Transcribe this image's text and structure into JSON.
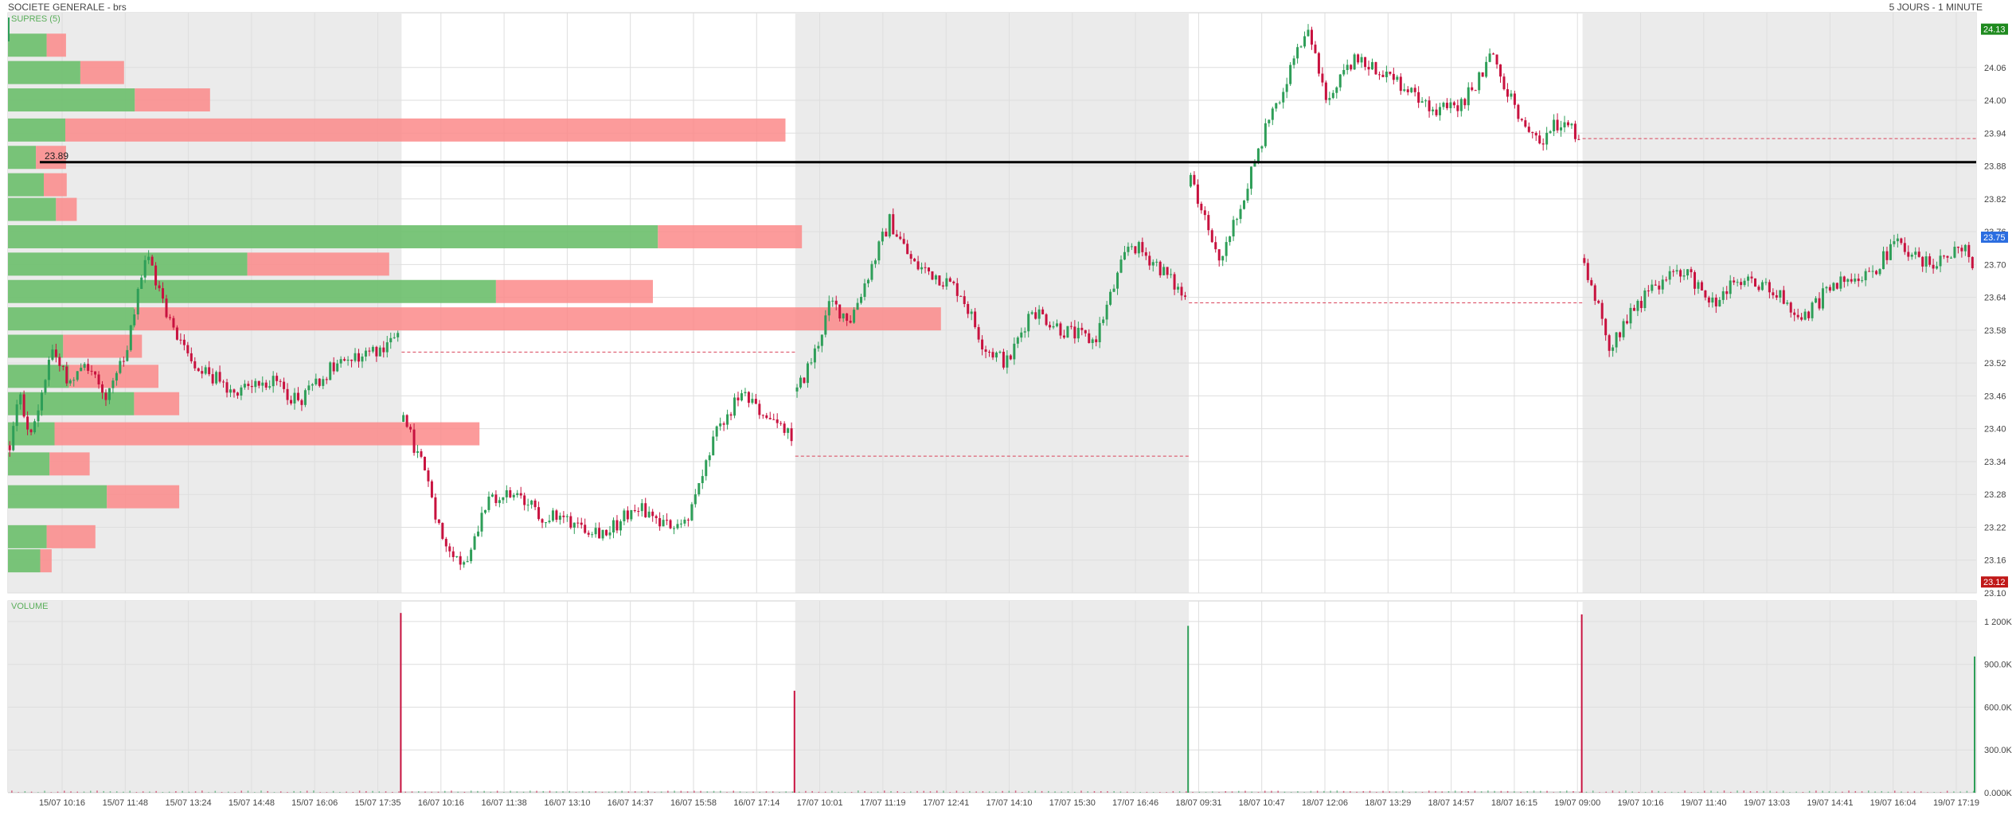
{
  "header": {
    "title": "SOCIETE GENERALE - brs",
    "period": "5 JOURS - 1 MINUTE"
  },
  "price_panel": {
    "label": "SUPRES (5)"
  },
  "volume_panel": {
    "label": "VOLUME"
  },
  "colors": {
    "up": "#2e9e58",
    "down": "#c8123f",
    "profile_buy": "#6cbf6c",
    "profile_sell": "#fb8a8a",
    "shade": "#ebebeb",
    "grid": "#dedede",
    "level_line": "#000000",
    "ref_line": "#d9435a",
    "badge_high": "#1f8a1f",
    "badge_last": "#2b6de0",
    "badge_low": "#c01818"
  },
  "chart_data": [
    {
      "type": "candlestick",
      "title": "SOCIETE GENERALE - brs",
      "subtitle": "5 JOURS - 1 MINUTE",
      "indicator": "SUPRES (5)",
      "ylim": [
        23.1,
        24.16
      ],
      "y_ticks": [
        "23.10",
        "23.16",
        "23.22",
        "23.28",
        "23.34",
        "23.40",
        "23.46",
        "23.52",
        "23.58",
        "23.64",
        "23.70",
        "23.76",
        "23.82",
        "23.88",
        "23.94",
        "24.00",
        "24.06"
      ],
      "x_tick_labels": [
        "15/07 10:16",
        "15/07 11:48",
        "15/07 13:24",
        "15/07 14:48",
        "15/07 16:06",
        "15/07 17:35",
        "16/07 10:16",
        "16/07 11:38",
        "16/07 13:10",
        "16/07 14:37",
        "16/07 15:58",
        "16/07 17:14",
        "17/07 10:01",
        "17/07 11:19",
        "17/07 12:41",
        "17/07 14:10",
        "17/07 15:30",
        "17/07 16:46",
        "18/07 09:31",
        "18/07 10:47",
        "18/07 12:06",
        "18/07 13:29",
        "18/07 14:57",
        "18/07 16:15",
        "19/07 09:00",
        "19/07 10:16",
        "19/07 11:40",
        "19/07 13:03",
        "19/07 14:41",
        "19/07 16:04",
        "19/07 17:19"
      ],
      "session_shading": [
        true,
        false,
        true,
        false,
        true
      ],
      "price_path": [
        [
          0,
          23.35
        ],
        [
          0.03,
          23.46
        ],
        [
          0.06,
          23.38
        ],
        [
          0.11,
          23.55
        ],
        [
          0.16,
          23.48
        ],
        [
          0.19,
          23.53
        ],
        [
          0.25,
          23.46
        ],
        [
          0.3,
          23.53
        ],
        [
          0.35,
          23.72
        ],
        [
          0.42,
          23.58
        ],
        [
          0.48,
          23.52
        ],
        [
          0.56,
          23.47
        ],
        [
          0.66,
          23.49
        ],
        [
          0.74,
          23.45
        ],
        [
          0.82,
          23.51
        ],
        [
          0.95,
          23.55
        ],
        [
          1.0,
          23.57
        ],
        [
          1.0,
          23.42
        ],
        [
          1.05,
          23.34
        ],
        [
          1.1,
          23.21
        ],
        [
          1.16,
          23.15
        ],
        [
          1.21,
          23.26
        ],
        [
          1.28,
          23.28
        ],
        [
          1.36,
          23.24
        ],
        [
          1.44,
          23.23
        ],
        [
          1.52,
          23.21
        ],
        [
          1.6,
          23.26
        ],
        [
          1.67,
          23.22
        ],
        [
          1.73,
          23.24
        ],
        [
          1.8,
          23.39
        ],
        [
          1.86,
          23.46
        ],
        [
          1.93,
          23.42
        ],
        [
          2.0,
          23.38
        ],
        [
          2.0,
          23.46
        ],
        [
          2.05,
          23.54
        ],
        [
          2.09,
          23.63
        ],
        [
          2.14,
          23.6
        ],
        [
          2.19,
          23.69
        ],
        [
          2.24,
          23.78
        ],
        [
          2.3,
          23.7
        ],
        [
          2.36,
          23.68
        ],
        [
          2.42,
          23.65
        ],
        [
          2.48,
          23.55
        ],
        [
          2.54,
          23.52
        ],
        [
          2.6,
          23.62
        ],
        [
          2.68,
          23.58
        ],
        [
          2.76,
          23.56
        ],
        [
          2.85,
          23.74
        ],
        [
          2.92,
          23.7
        ],
        [
          3.0,
          23.63
        ],
        [
          3.0,
          23.86
        ],
        [
          3.03,
          23.8
        ],
        [
          3.08,
          23.71
        ],
        [
          3.13,
          23.8
        ],
        [
          3.18,
          23.92
        ],
        [
          3.24,
          24.02
        ],
        [
          3.3,
          24.13
        ],
        [
          3.35,
          24.0
        ],
        [
          3.42,
          24.07
        ],
        [
          3.48,
          24.06
        ],
        [
          3.56,
          24.02
        ],
        [
          3.64,
          23.98
        ],
        [
          3.7,
          24.0
        ],
        [
          3.77,
          24.08
        ],
        [
          3.83,
          23.99
        ],
        [
          3.88,
          23.92
        ],
        [
          3.94,
          23.96
        ],
        [
          4.0,
          23.93
        ],
        [
          4.0,
          23.72
        ],
        [
          4.03,
          23.64
        ],
        [
          4.07,
          23.55
        ],
        [
          4.12,
          23.61
        ],
        [
          4.18,
          23.66
        ],
        [
          4.26,
          23.69
        ],
        [
          4.33,
          23.63
        ],
        [
          4.4,
          23.67
        ],
        [
          4.47,
          23.66
        ],
        [
          4.56,
          23.6
        ],
        [
          4.62,
          23.65
        ],
        [
          4.68,
          23.68
        ],
        [
          4.74,
          23.69
        ],
        [
          4.8,
          23.74
        ],
        [
          4.87,
          23.7
        ],
        [
          4.93,
          23.72
        ],
        [
          4.97,
          23.73
        ],
        [
          5.0,
          23.69
        ]
      ],
      "price_badges": [
        {
          "name": "high",
          "label": "24.13",
          "value": 24.13
        },
        {
          "name": "last",
          "label": "23.75",
          "value": 23.75
        },
        {
          "name": "low",
          "label": "23.12",
          "value": 23.12
        }
      ],
      "support_resistance": {
        "label": "23.89",
        "value": 23.887
      },
      "previous_close_lines": [
        {
          "session_start": 0,
          "value": 23.54
        },
        {
          "session_start": 1,
          "value": 23.35
        },
        {
          "session_start": 2,
          "value": 23.63
        },
        {
          "session_start": 3,
          "value": 23.93
        }
      ],
      "volume_profile": {
        "levels": [
          23.158,
          23.202,
          23.275,
          23.335,
          23.39,
          23.445,
          23.495,
          23.55,
          23.6,
          23.65,
          23.7,
          23.75,
          23.8,
          23.845,
          23.895,
          23.945,
          24.0,
          24.05,
          24.1
        ],
        "buy": [
          0.045,
          0.054,
          0.138,
          0.058,
          0.065,
          0.176,
          0.085,
          0.077,
          0.176,
          0.681,
          0.334,
          0.907,
          0.067,
          0.05,
          0.039,
          0.08,
          0.177,
          0.101,
          0.054
        ],
        "sell": [
          0.016,
          0.068,
          0.101,
          0.056,
          0.593,
          0.063,
          0.125,
          0.11,
          1.126,
          0.219,
          0.198,
          0.201,
          0.029,
          0.032,
          0.042,
          1.005,
          0.105,
          0.061,
          0.027
        ]
      }
    },
    {
      "type": "bar",
      "title": "VOLUME",
      "y_ticks": [
        "0.000K",
        "300.0K",
        "600.0K",
        "900.0K",
        "1 200K"
      ],
      "ylim": [
        0,
        1300000
      ],
      "session_opening_volume": [
        1260000,
        715000,
        1170000,
        1250000,
        955000
      ],
      "session_open_colors": [
        "down",
        "down",
        "up",
        "down",
        "up"
      ],
      "baseline_volume": 12000
    }
  ]
}
